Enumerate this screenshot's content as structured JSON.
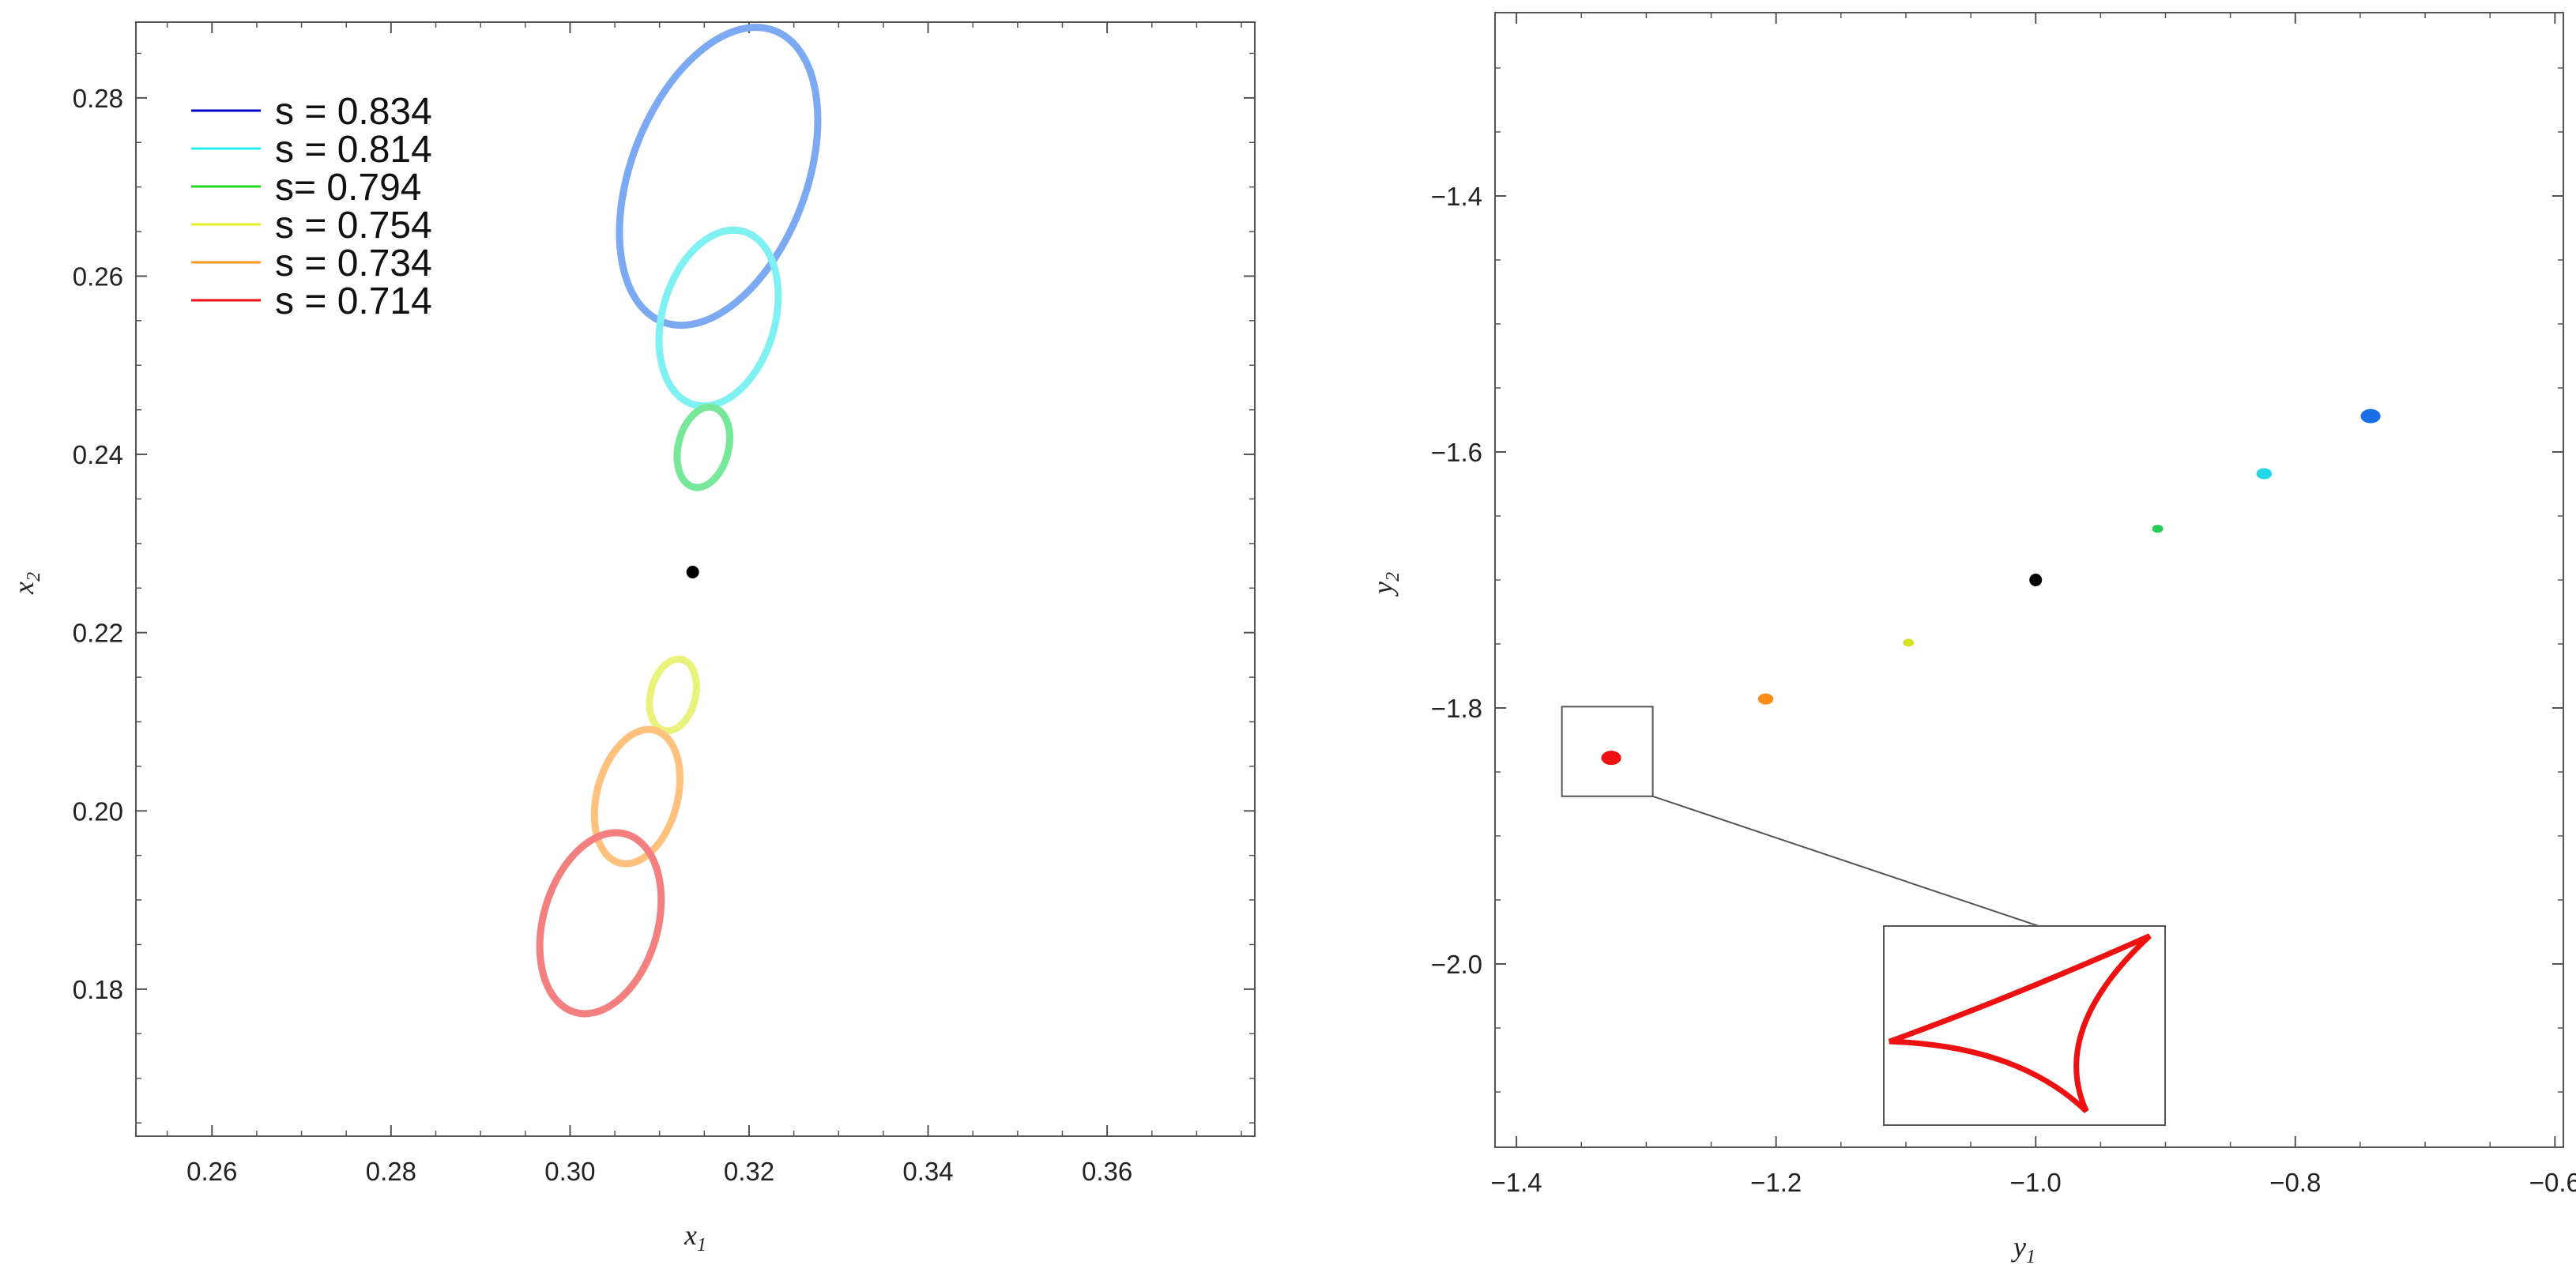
{
  "colors": {
    "frame": "#555555",
    "point": "#000000"
  },
  "chart_data": [
    {
      "type": "line",
      "panel": "left",
      "xlabel": "x",
      "xlabel_sub": "1",
      "ylabel": "x",
      "ylabel_sub": "2",
      "xlim": [
        0.2515,
        0.3765
      ],
      "ylim": [
        0.1635,
        0.2885
      ],
      "xticks": [
        0.26,
        0.28,
        0.3,
        0.32,
        0.34,
        0.36
      ],
      "xtick_labels": [
        "0.26",
        "0.28",
        "0.30",
        "0.32",
        "0.34",
        "0.36"
      ],
      "yticks": [
        0.18,
        0.2,
        0.22,
        0.24,
        0.26,
        0.28
      ],
      "ytick_labels": [
        "0.18",
        "0.20",
        "0.22",
        "0.24",
        "0.26",
        "0.28"
      ],
      "legend_position": "top-left",
      "center_point": {
        "x": 0.3137,
        "y": 0.2268
      },
      "series": [
        {
          "name": "s = 0.834",
          "legend_color": "#0000cc",
          "stroke": "#7ba9f2",
          "ellipse": {
            "cx": 0.3166,
            "cy": 0.2712,
            "rx": 0.0098,
            "ry": 0.0175,
            "rotation": 21
          }
        },
        {
          "name": "s = 0.814",
          "legend_color": "#22eeee",
          "stroke": "#7ff1f3",
          "ellipse": {
            "cx": 0.3166,
            "cy": 0.2553,
            "rx": 0.0063,
            "ry": 0.0101,
            "rotation": 16
          }
        },
        {
          "name": "s= 0.794",
          "legend_color": "#22dd22",
          "stroke": "#77e89a",
          "ellipse": {
            "cx": 0.3149,
            "cy": 0.2408,
            "rx": 0.0028,
            "ry": 0.0046,
            "rotation": 14
          }
        },
        {
          "name": "s = 0.754",
          "legend_color": "#e6ee22",
          "stroke": "#e9f27a",
          "ellipse": {
            "cx": 0.3115,
            "cy": 0.213,
            "rx": 0.0025,
            "ry": 0.0041,
            "rotation": 14
          }
        },
        {
          "name": "s = 0.734",
          "legend_color": "#ff9922",
          "stroke": "#ffc27e",
          "ellipse": {
            "cx": 0.3075,
            "cy": 0.2016,
            "rx": 0.0045,
            "ry": 0.0077,
            "rotation": 15
          }
        },
        {
          "name": "s = 0.714",
          "legend_color": "#ee1111",
          "stroke": "#f47f7f",
          "ellipse": {
            "cx": 0.3034,
            "cy": 0.1874,
            "rx": 0.0064,
            "ry": 0.0104,
            "rotation": 16
          }
        }
      ]
    },
    {
      "type": "scatter",
      "panel": "right",
      "xlabel": "y",
      "xlabel_sub": "1",
      "ylabel": "y",
      "ylabel_sub": "2",
      "xlim": [
        -1.4165,
        -0.5935
      ],
      "ylim": [
        -2.1432,
        -1.2568
      ],
      "xticks": [
        -1.4,
        -1.2,
        -1.0,
        -0.8,
        -0.6
      ],
      "xtick_labels": [
        "−1.4",
        "−1.2",
        "−1.0",
        "−0.8",
        "−0.6"
      ],
      "yticks": [
        -2.0,
        -1.8,
        -1.6,
        -1.4
      ],
      "ytick_labels": [
        "−2.0",
        "−1.8",
        "−1.6",
        "−1.4"
      ],
      "center_point": {
        "x": -1.0,
        "y": -1.7
      },
      "points": [
        {
          "x": -0.742,
          "y": -1.572,
          "color": "#1a6fe8",
          "size": "large"
        },
        {
          "x": -0.824,
          "y": -1.617,
          "color": "#22d8e8",
          "size": "medium"
        },
        {
          "x": -0.906,
          "y": -1.66,
          "color": "#22cc55",
          "size": "small"
        },
        {
          "x": -1.098,
          "y": -1.749,
          "color": "#d8e022",
          "size": "small"
        },
        {
          "x": -1.208,
          "y": -1.793,
          "color": "#ff8c1a",
          "size": "medium"
        },
        {
          "x": -1.327,
          "y": -1.839,
          "color": "#ee1111",
          "size": "large"
        }
      ],
      "zoom_region": {
        "x": [
          -1.365,
          -1.295
        ],
        "y": [
          -1.869,
          -1.799
        ]
      },
      "inset_caustic_color": "#ee1111"
    }
  ]
}
